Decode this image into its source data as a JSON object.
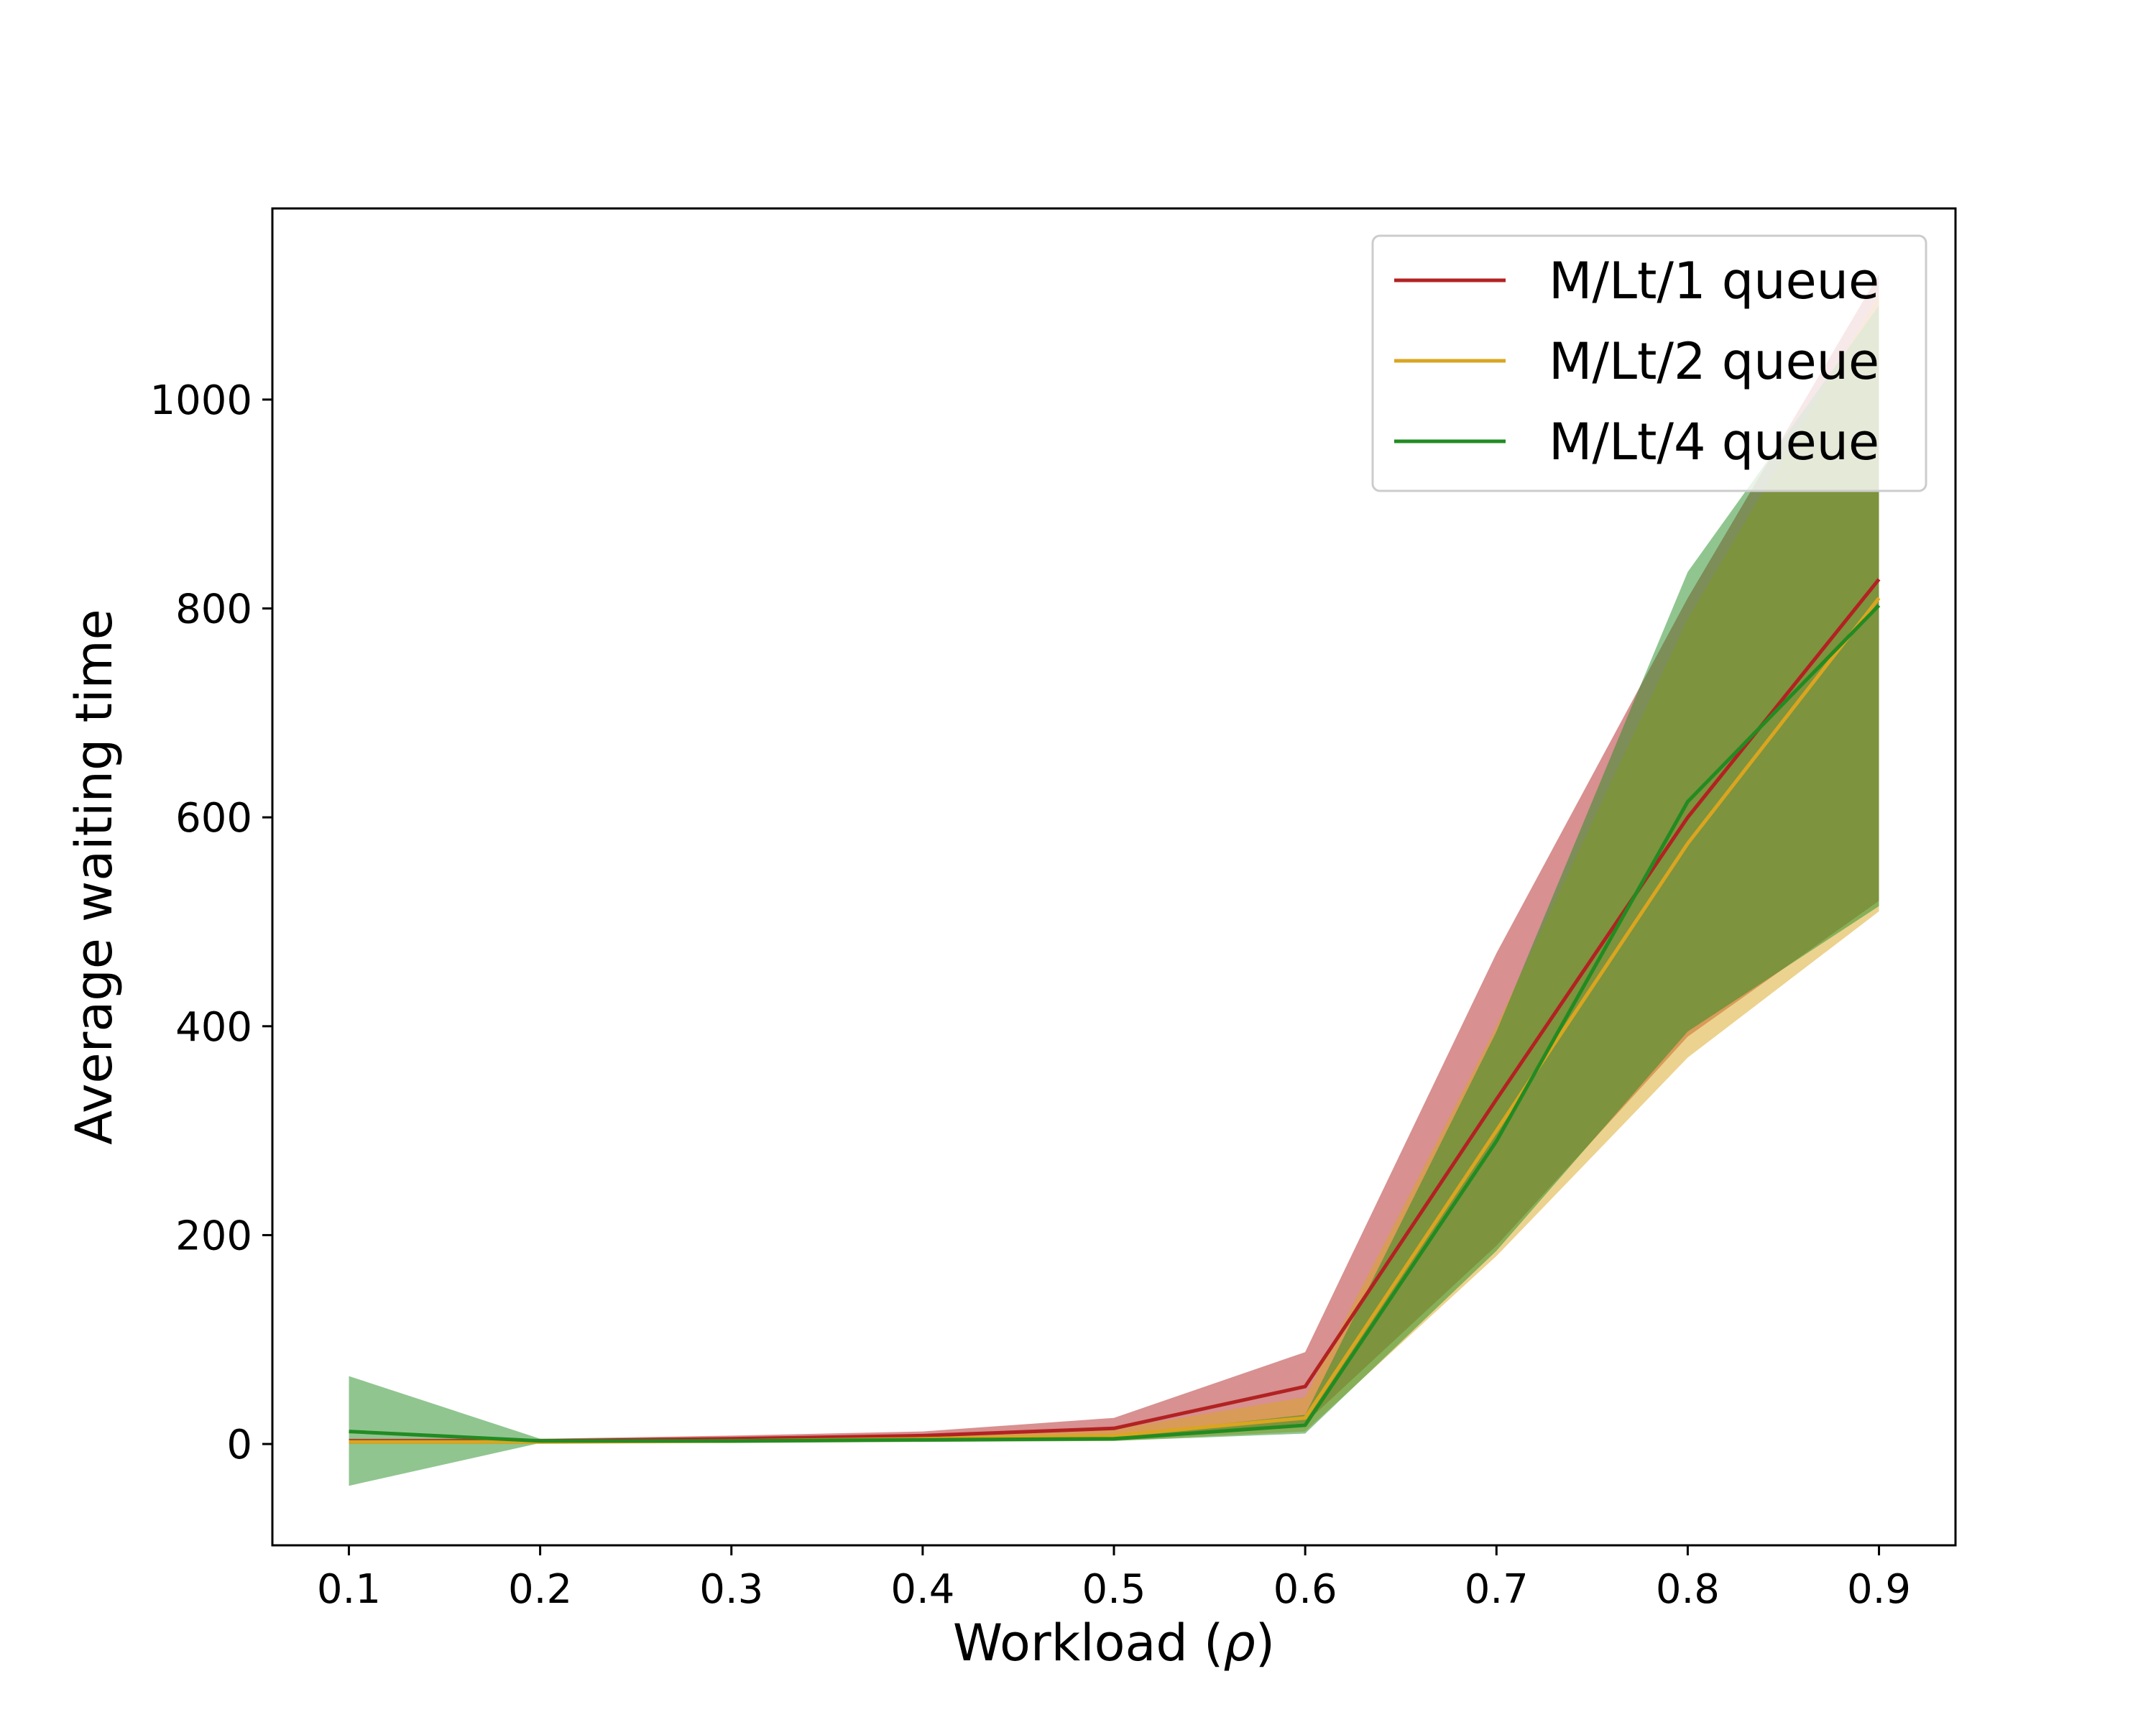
{
  "chart_data": {
    "type": "line",
    "title": "",
    "xlabel": "Workload (",
    "xlabel_symbol": "ρ",
    "xlabel_close": ")",
    "ylabel": "Average waiting time",
    "xlim": [
      0.06,
      0.94
    ],
    "ylim": [
      -97,
      1183
    ],
    "grid": false,
    "legend_position": "top-right",
    "x_ticks": [
      0.1,
      0.2,
      0.3,
      0.4,
      0.5,
      0.6,
      0.7,
      0.8,
      0.9
    ],
    "x_tick_labels": [
      "0.1",
      "0.2",
      "0.3",
      "0.4",
      "0.5",
      "0.6",
      "0.7",
      "0.8",
      "0.9"
    ],
    "y_ticks": [
      0,
      200,
      400,
      600,
      800,
      1000
    ],
    "y_tick_labels": [
      "0",
      "200",
      "400",
      "600",
      "800",
      "1000"
    ],
    "x": [
      0.1,
      0.2,
      0.3,
      0.4,
      0.5,
      0.6,
      0.7,
      0.8,
      0.9
    ],
    "series": [
      {
        "name": "M/Lt/1 queue",
        "color": "#b22222",
        "band_opacity": 0.5,
        "values": [
          3,
          3,
          5,
          8,
          15,
          55,
          330,
          600,
          828
        ],
        "lower": [
          1,
          1,
          2,
          3,
          5,
          20,
          190,
          390,
          520
        ],
        "upper": [
          5,
          5,
          8,
          12,
          25,
          88,
          470,
          810,
          1120
        ]
      },
      {
        "name": "M/Lt/2 queue",
        "color": "#daa520",
        "band_opacity": 0.5,
        "values": [
          2,
          2,
          3,
          5,
          8,
          25,
          300,
          575,
          810
        ],
        "lower": [
          0,
          0,
          1,
          2,
          3,
          12,
          180,
          370,
          510
        ],
        "upper": [
          4,
          4,
          5,
          8,
          14,
          45,
          400,
          790,
          1100
        ]
      },
      {
        "name": "M/Lt/4 queue",
        "color": "#228b22",
        "band_opacity": 0.5,
        "values": [
          12,
          3,
          3,
          4,
          5,
          18,
          290,
          615,
          803
        ],
        "lower": [
          -40,
          1,
          1,
          2,
          3,
          10,
          185,
          395,
          515
        ],
        "upper": [
          65,
          5,
          5,
          6,
          8,
          28,
          395,
          835,
          1090
        ]
      }
    ]
  }
}
